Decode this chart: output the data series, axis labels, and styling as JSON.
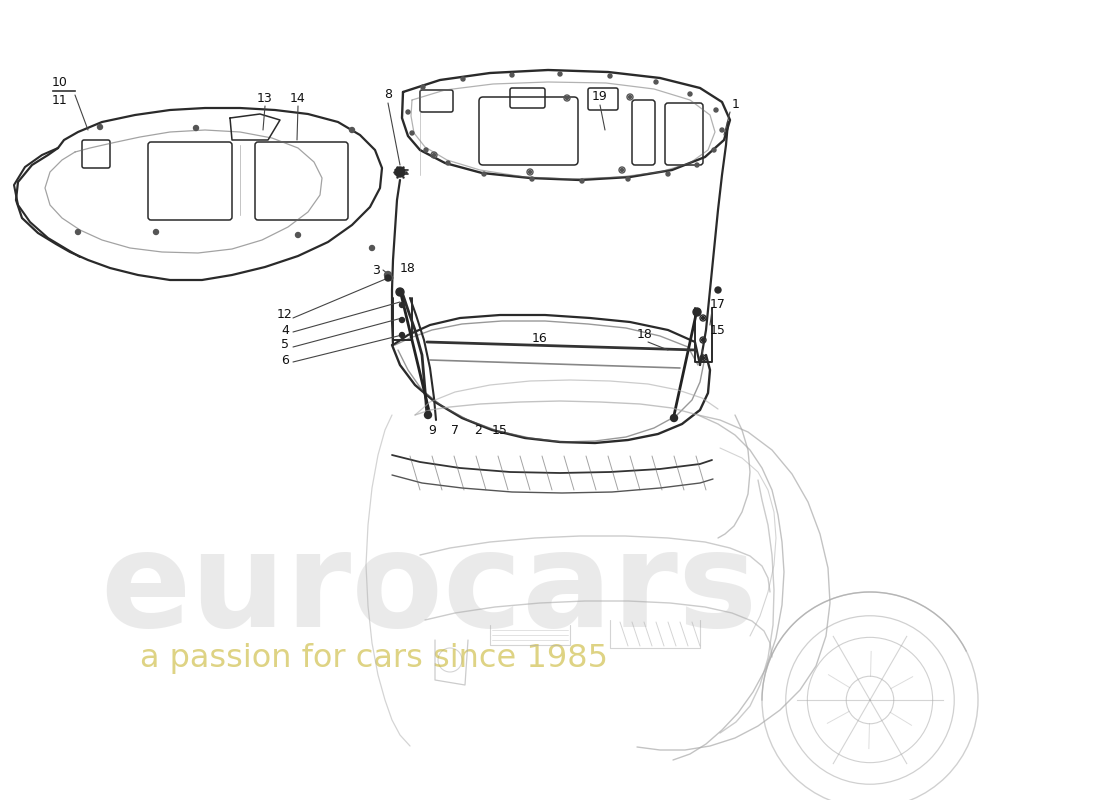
{
  "background_color": "#ffffff",
  "line_color": "#2a2a2a",
  "light_line_color": "#888888",
  "car_color": "#aaaaaa",
  "watermark_eurocars": "eurocars",
  "watermark_passion": "a passion for cars since 1985",
  "figsize": [
    11.0,
    8.0
  ],
  "dpi": 100
}
